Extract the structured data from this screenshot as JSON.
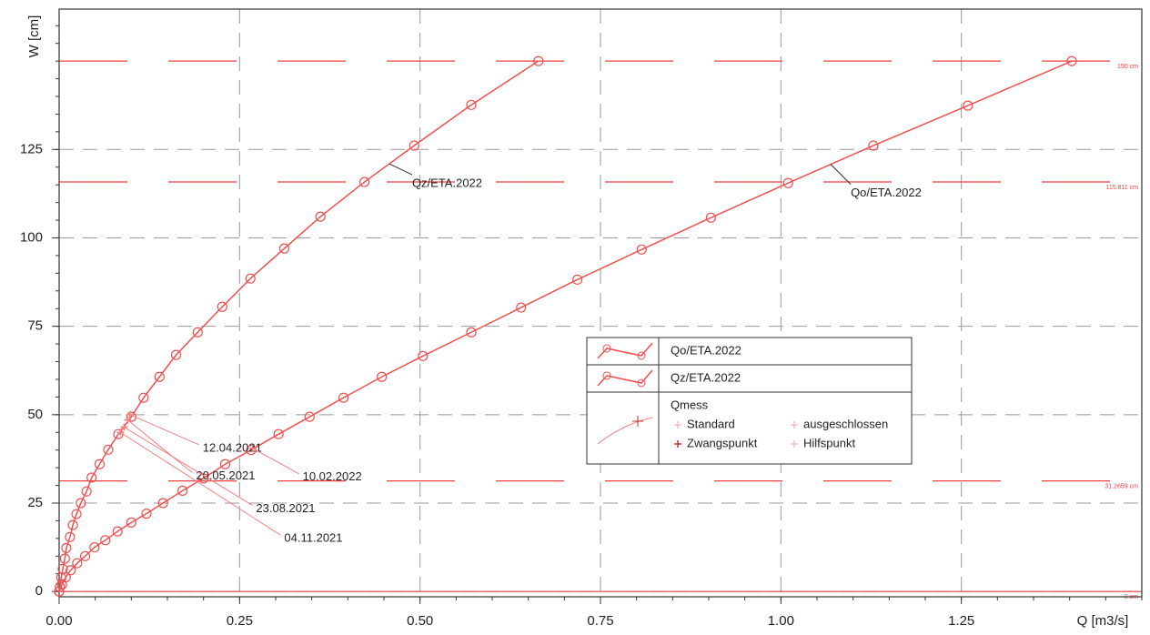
{
  "chart_data": {
    "type": "line",
    "xlabel": "Q [m3/s]",
    "ylabel": "W [cm]",
    "xlim": [
      0,
      1.5
    ],
    "ylim": [
      -1.5,
      164.7
    ],
    "xticks": [
      {
        "value": 0,
        "label": "0.00"
      },
      {
        "value": 0.25,
        "label": "0.25"
      },
      {
        "value": 0.5,
        "label": "0.50"
      },
      {
        "value": 0.75,
        "label": "0.75"
      },
      {
        "value": 1,
        "label": "1.00"
      },
      {
        "value": 1.25,
        "label": "1.25"
      }
    ],
    "yticks": [
      0,
      25,
      50,
      75,
      100,
      125
    ],
    "grid": true,
    "reference_lines": [
      {
        "value": 150,
        "label": "150 cm"
      },
      {
        "value": 115.811,
        "label": "115.811 cm"
      },
      {
        "value": 31.2659,
        "label": "31.2659 cm"
      },
      {
        "value": 0,
        "label": "0 cm"
      }
    ],
    "series": [
      {
        "name": "Qo/ETA.2022",
        "color": "#f05050",
        "x": [
          0,
          0.004,
          0.009,
          0.016,
          0.025,
          0.036,
          0.049,
          0.064,
          0.081,
          0.1,
          0.121,
          0.144,
          0.171,
          0.2,
          0.23,
          0.266,
          0.304,
          0.347,
          0.394,
          0.447,
          0.504,
          0.571,
          0.64,
          0.718,
          0.807,
          0.903,
          1.01,
          1.128,
          1.259,
          1.403
        ],
        "values": [
          0,
          2,
          4,
          6,
          8,
          10,
          12.5,
          14.5,
          17,
          19.5,
          22,
          25,
          28.5,
          32,
          36,
          40,
          44.5,
          49.4,
          54.8,
          60.7,
          66.6,
          73.3,
          80.3,
          88.2,
          96.7,
          105.7,
          115.5,
          126.1,
          137.4,
          150
        ]
      },
      {
        "name": "Qz/ETA.2022",
        "color": "#f05050",
        "x": [
          0,
          0.001,
          0.003,
          0.005,
          0.008,
          0.01,
          0.015,
          0.019,
          0.024,
          0.03,
          0.038,
          0.045,
          0.056,
          0.068,
          0.082,
          0.1,
          0.117,
          0.139,
          0.162,
          0.192,
          0.226,
          0.265,
          0.312,
          0.362,
          0.423,
          0.492,
          0.571,
          0.664
        ],
        "values": [
          0,
          1.3,
          3.9,
          6.4,
          9.3,
          12.3,
          15.4,
          18.8,
          21.9,
          25,
          28.3,
          32.2,
          36,
          40.1,
          44.5,
          49.4,
          54.8,
          60.7,
          66.9,
          73.3,
          80.5,
          88.5,
          97,
          106,
          115.8,
          126.1,
          137.6,
          150
        ]
      },
      {
        "name": "Qmess",
        "color": "#f08080",
        "x": [
          0.098,
          0.095,
          0.09,
          0.085,
          0.268
        ],
        "values": [
          50,
          48.5,
          46.5,
          45,
          40.5
        ],
        "labels": [
          "12.04.2021",
          "20.05.2021",
          "23.08.2021",
          "04.11.2021",
          "10.02.2022"
        ],
        "marker_types": [
          "Standard",
          "ausgeschlossen",
          "Zwangspunkt",
          "Hilfspunkt"
        ]
      }
    ]
  }
}
